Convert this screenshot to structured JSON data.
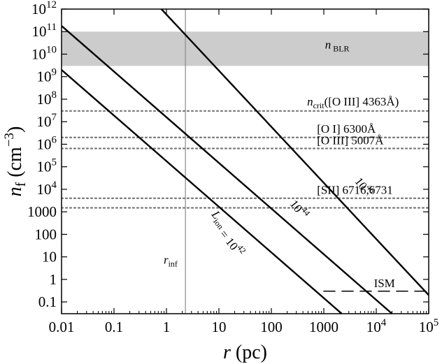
{
  "chart_data": {
    "type": "line",
    "xscale": "log",
    "yscale": "log",
    "xlim": [
      0.01,
      100000
    ],
    "ylim": [
      0.03,
      1000000000000.0
    ],
    "grid": false,
    "xlabel": {
      "var": "r",
      "unit": " (pc)"
    },
    "ylabel": {
      "var": "n",
      "sub": "f",
      "unit": " (cm",
      "exp": "−3",
      "close": ")"
    },
    "x_ticks": [
      {
        "value": 0.01,
        "label": "0.01"
      },
      {
        "value": 0.1,
        "label": "0.1"
      },
      {
        "value": 1,
        "label": "1"
      },
      {
        "value": 10,
        "label": "10"
      },
      {
        "value": 100,
        "label": "100"
      },
      {
        "value": 1000,
        "label": "1000"
      },
      {
        "value": 10000,
        "base": "10",
        "exp": "4"
      },
      {
        "value": 100000,
        "base": "10",
        "exp": "5"
      }
    ],
    "y_ticks": [
      {
        "value": 0.1,
        "label": "0.1"
      },
      {
        "value": 1,
        "label": "1"
      },
      {
        "value": 10,
        "label": "10"
      },
      {
        "value": 100,
        "label": "100"
      },
      {
        "value": 1000,
        "label": "1000"
      },
      {
        "value": 10000,
        "base": "10",
        "exp": "4"
      },
      {
        "value": 100000,
        "base": "10",
        "exp": "5"
      },
      {
        "value": 1000000,
        "base": "10",
        "exp": "6"
      },
      {
        "value": 10000000,
        "base": "10",
        "exp": "7"
      },
      {
        "value": 100000000,
        "base": "10",
        "exp": "8"
      },
      {
        "value": 1000000000,
        "base": "10",
        "exp": "9"
      },
      {
        "value": 10000000000,
        "base": "10",
        "exp": "10"
      },
      {
        "value": 100000000000,
        "base": "10",
        "exp": "11"
      },
      {
        "value": 1000000000000,
        "base": "10",
        "exp": "12"
      }
    ],
    "series": [
      {
        "id": "L42",
        "x": [
          0.01,
          2200
        ],
        "y": [
          2000000000,
          0.03
        ],
        "label": {
          "pre": "L",
          "sub": "ion",
          "mid": " = 10",
          "sup": "42"
        },
        "label_at": [
          14,
          100
        ],
        "label_angle": -52
      },
      {
        "id": "L44",
        "x": [
          0.01,
          20000
        ],
        "y": [
          180000000000,
          0.03
        ],
        "label": {
          "pre": "10",
          "sup": "44"
        },
        "label_at": [
          290,
          1000
        ],
        "label_angle": -52
      },
      {
        "id": "L46",
        "x": [
          0.8,
          100000
        ],
        "y": [
          1000000000000,
          0.2
        ],
        "label": {
          "pre": "10",
          "sup": "46"
        },
        "label_at": [
          5000,
          10000
        ],
        "label_angle": -52
      }
    ],
    "bands": [
      {
        "id": "n-blr",
        "y": [
          3000000000,
          100000000000
        ],
        "color": "#cccccc",
        "label": {
          "pre": "n",
          "sub": " BLR"
        },
        "label_at": [
          1800,
          18000000000
        ]
      }
    ],
    "hlines": [
      {
        "id": "n-crit-oiii-4363",
        "y": 30000000,
        "style": "dotted",
        "label": {
          "pre": "n",
          "sub": "crit",
          "post": "([O III] 4363Å)"
        },
        "label_at": [
          480,
          52000000
        ]
      },
      {
        "id": "oi-6300",
        "y": 2000000,
        "style": "dotted",
        "label": {
          "post": "[O I] 6300Å"
        },
        "label_at": [
          740,
          3200000
        ]
      },
      {
        "id": "oiii-5007",
        "y": 650000,
        "style": "dotted",
        "label": {
          "post": "[O III] 5007Å"
        },
        "label_at": [
          740,
          1000000
        ]
      },
      {
        "id": "sii-6731",
        "y": 4000,
        "style": "dotted",
        "label": {
          "post": "[SII] 6716,6731"
        },
        "label_at": [
          740,
          6200
        ]
      },
      {
        "id": "sii-6716",
        "y": 1500,
        "style": "dotted"
      },
      {
        "id": "ism",
        "y": 0.3,
        "x": [
          1000,
          100000
        ],
        "style": "dashed",
        "label": {
          "post": "ISM"
        },
        "label_at": [
          9000,
          0.45
        ]
      }
    ],
    "vlines": [
      {
        "id": "r-inf",
        "x": 2.3,
        "color": "#888888",
        "label": {
          "pre": "r",
          "sub": "inf"
        },
        "label_at": [
          1.2,
          5
        ]
      }
    ]
  }
}
